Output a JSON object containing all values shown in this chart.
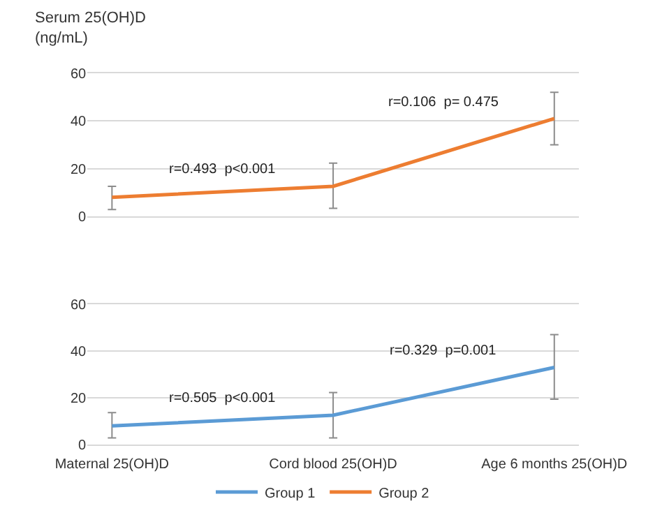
{
  "chart_data": [
    {
      "type": "line",
      "ylabel": "Serum 25(OH)D\n(ng/mL)",
      "categories": [
        null,
        null,
        null
      ],
      "ylim": [
        0,
        60
      ],
      "yticks": [
        0,
        20,
        40,
        60
      ],
      "grid": "y",
      "marker": "none",
      "legend": "bottom",
      "series": [
        {
          "name": "Group 2",
          "color": "#ed7d31",
          "values": [
            8,
            12.6,
            41
          ],
          "errors": [
            [
              2.9,
              12.6
            ],
            [
              3.4,
              22.3
            ],
            [
              30,
              52
            ]
          ]
        }
      ],
      "annotations": [
        "r=0.493  p<0.001",
        "r=0.106  p= 0.475"
      ]
    },
    {
      "type": "line",
      "categories": [
        "Maternal 25(OH)D",
        "Cord blood 25(OH)D",
        "Age 6 months 25(OH)D"
      ],
      "ylim": [
        0,
        60
      ],
      "yticks": [
        0,
        20,
        40,
        60
      ],
      "grid": "y",
      "marker": "none",
      "legend": "bottom",
      "series": [
        {
          "name": "Group 1",
          "color": "#5b9bd5",
          "values": [
            8,
            12.6,
            33
          ],
          "errors": [
            [
              2.9,
              13.7
            ],
            [
              2.9,
              22.3
            ],
            [
              19.4,
              47
            ]
          ]
        }
      ],
      "annotations": [
        "r=0.505  p<0.001",
        "r=0.329  p=0.001"
      ]
    }
  ]
}
